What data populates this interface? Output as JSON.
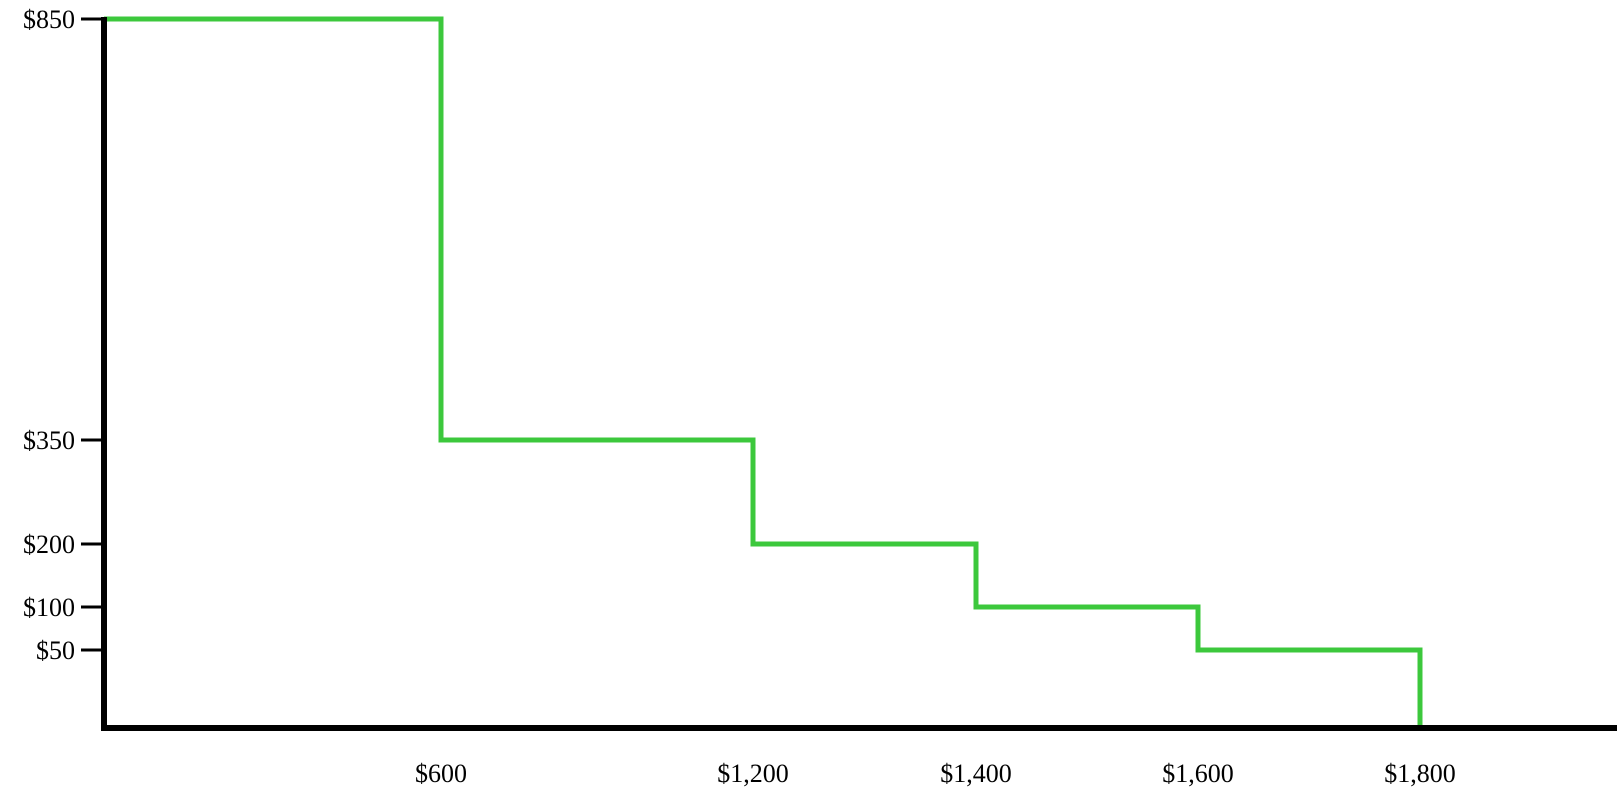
{
  "chart_data": {
    "type": "line",
    "style": "step",
    "title": "",
    "xlabel": "",
    "ylabel": "",
    "grid": false,
    "legend": "none",
    "x_ticks": [
      {
        "value": 600,
        "label": "$600"
      },
      {
        "value": 1200,
        "label": "$1,200"
      },
      {
        "value": 1400,
        "label": "$1,400"
      },
      {
        "value": 1600,
        "label": "$1,600"
      },
      {
        "value": 1800,
        "label": "$1,800"
      }
    ],
    "y_ticks": [
      {
        "value": 850,
        "label": "$850"
      },
      {
        "value": 350,
        "label": "$350"
      },
      {
        "value": 200,
        "label": "$200"
      },
      {
        "value": 100,
        "label": "$100"
      },
      {
        "value": 50,
        "label": "$50"
      }
    ],
    "series": [
      {
        "color": "#3cc83c",
        "points": [
          {
            "x": 0,
            "y": 850
          },
          {
            "x": 600,
            "y": 850
          },
          {
            "x": 600,
            "y": 350
          },
          {
            "x": 1200,
            "y": 350
          },
          {
            "x": 1200,
            "y": 200
          },
          {
            "x": 1400,
            "y": 200
          },
          {
            "x": 1400,
            "y": 100
          },
          {
            "x": 1600,
            "y": 100
          },
          {
            "x": 1600,
            "y": 50
          },
          {
            "x": 1800,
            "y": 50
          },
          {
            "x": 1800,
            "y": 0
          }
        ]
      }
    ],
    "axis_color": "#000000"
  }
}
